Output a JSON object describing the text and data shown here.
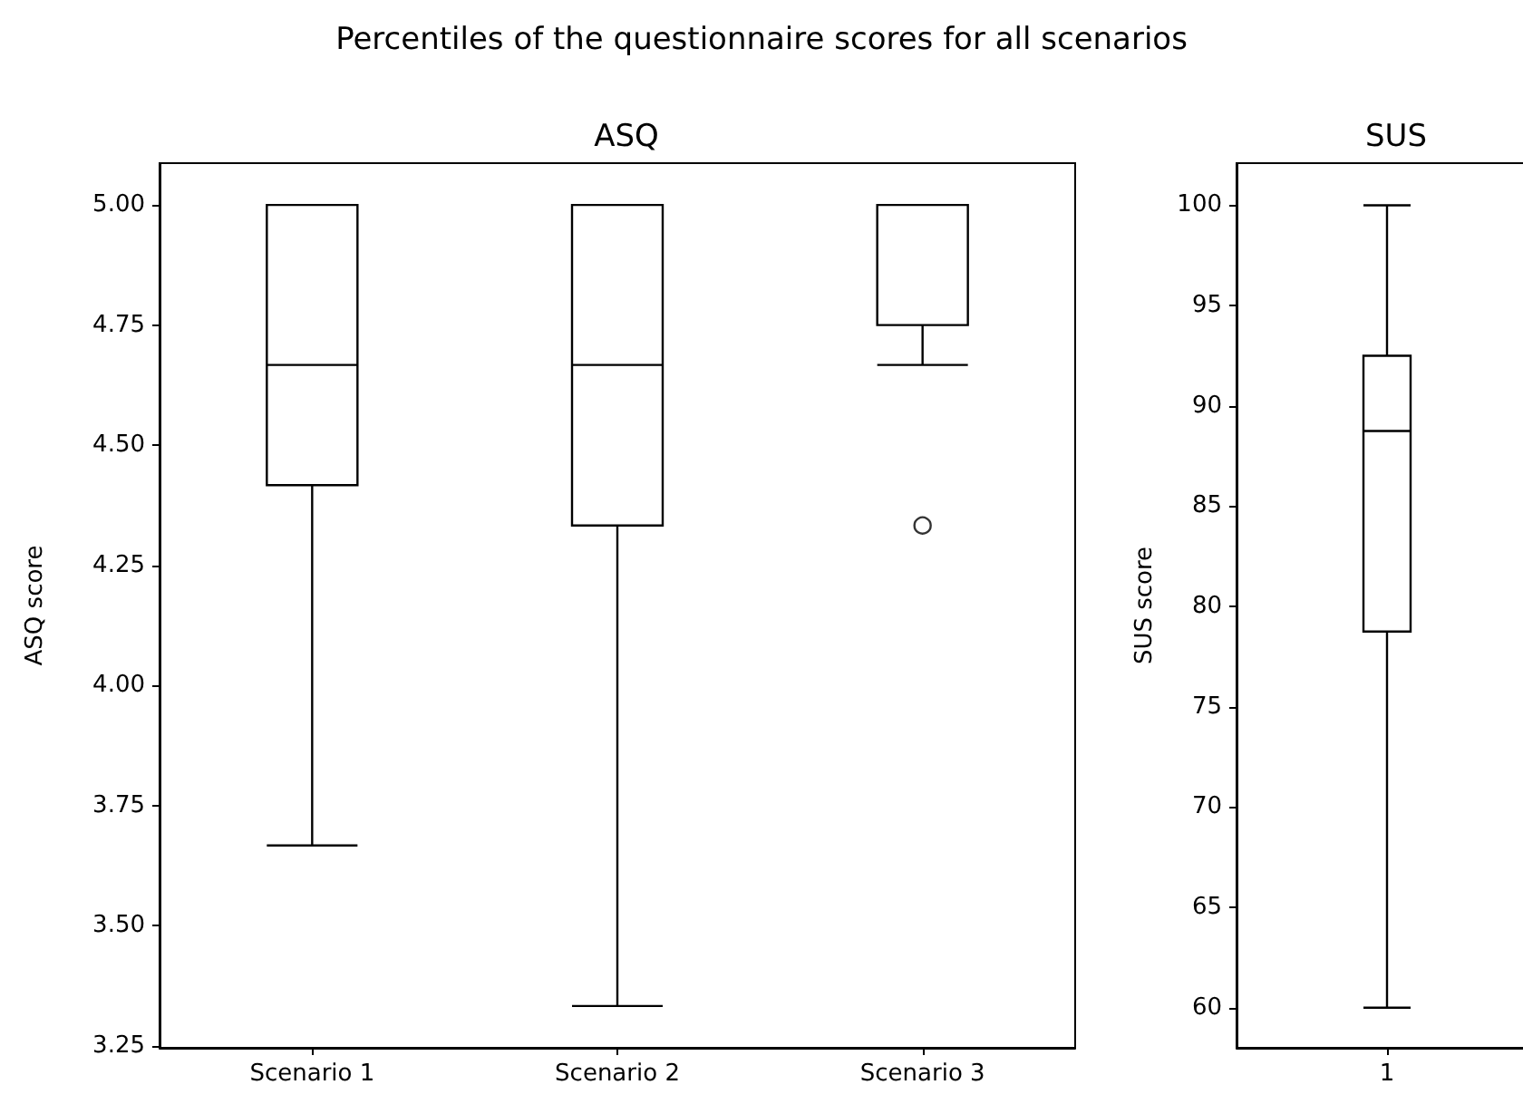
{
  "chart_data": [
    {
      "type": "box",
      "title": "ASQ",
      "ylabel": "ASQ score",
      "annotations": [
        "Percentiles of the questionnaire scores for all scenarios"
      ],
      "categories": [
        "Scenario 1",
        "Scenario 2",
        "Scenario 3"
      ],
      "grid": false,
      "legend": false,
      "boxes": [
        {
          "low": 3.667,
          "q1": 4.417,
          "median": 4.667,
          "q3": 5.0,
          "high": 5.0
        },
        {
          "low": 3.333,
          "q1": 4.333,
          "median": 4.667,
          "q3": 5.0,
          "high": 5.0
        },
        {
          "low": 4.667,
          "q1": 4.75,
          "median": 5.0,
          "q3": 5.0,
          "high": 5.0,
          "outliers": [
            4.333
          ]
        }
      ],
      "ylim": [
        3.246,
        5.087
      ],
      "yticks": [
        {
          "value": 3.25,
          "label": "3.25"
        },
        {
          "value": 3.5,
          "label": "3.50"
        },
        {
          "value": 3.75,
          "label": "3.75"
        },
        {
          "value": 4.0,
          "label": "4.00"
        },
        {
          "value": 4.25,
          "label": "4.25"
        },
        {
          "value": 4.5,
          "label": "4.50"
        },
        {
          "value": 4.75,
          "label": "4.75"
        },
        {
          "value": 5.0,
          "label": "5.00"
        }
      ]
    },
    {
      "type": "box",
      "title": "SUS",
      "ylabel": "SUS score",
      "categories": [
        "1"
      ],
      "grid": false,
      "legend": false,
      "boxes": [
        {
          "low": 60,
          "q1": 78.75,
          "median": 88.75,
          "q3": 92.5,
          "high": 100
        }
      ],
      "ylim": [
        58,
        102.1
      ],
      "yticks": [
        60,
        65,
        70,
        75,
        80,
        85,
        90,
        95,
        100
      ]
    }
  ]
}
